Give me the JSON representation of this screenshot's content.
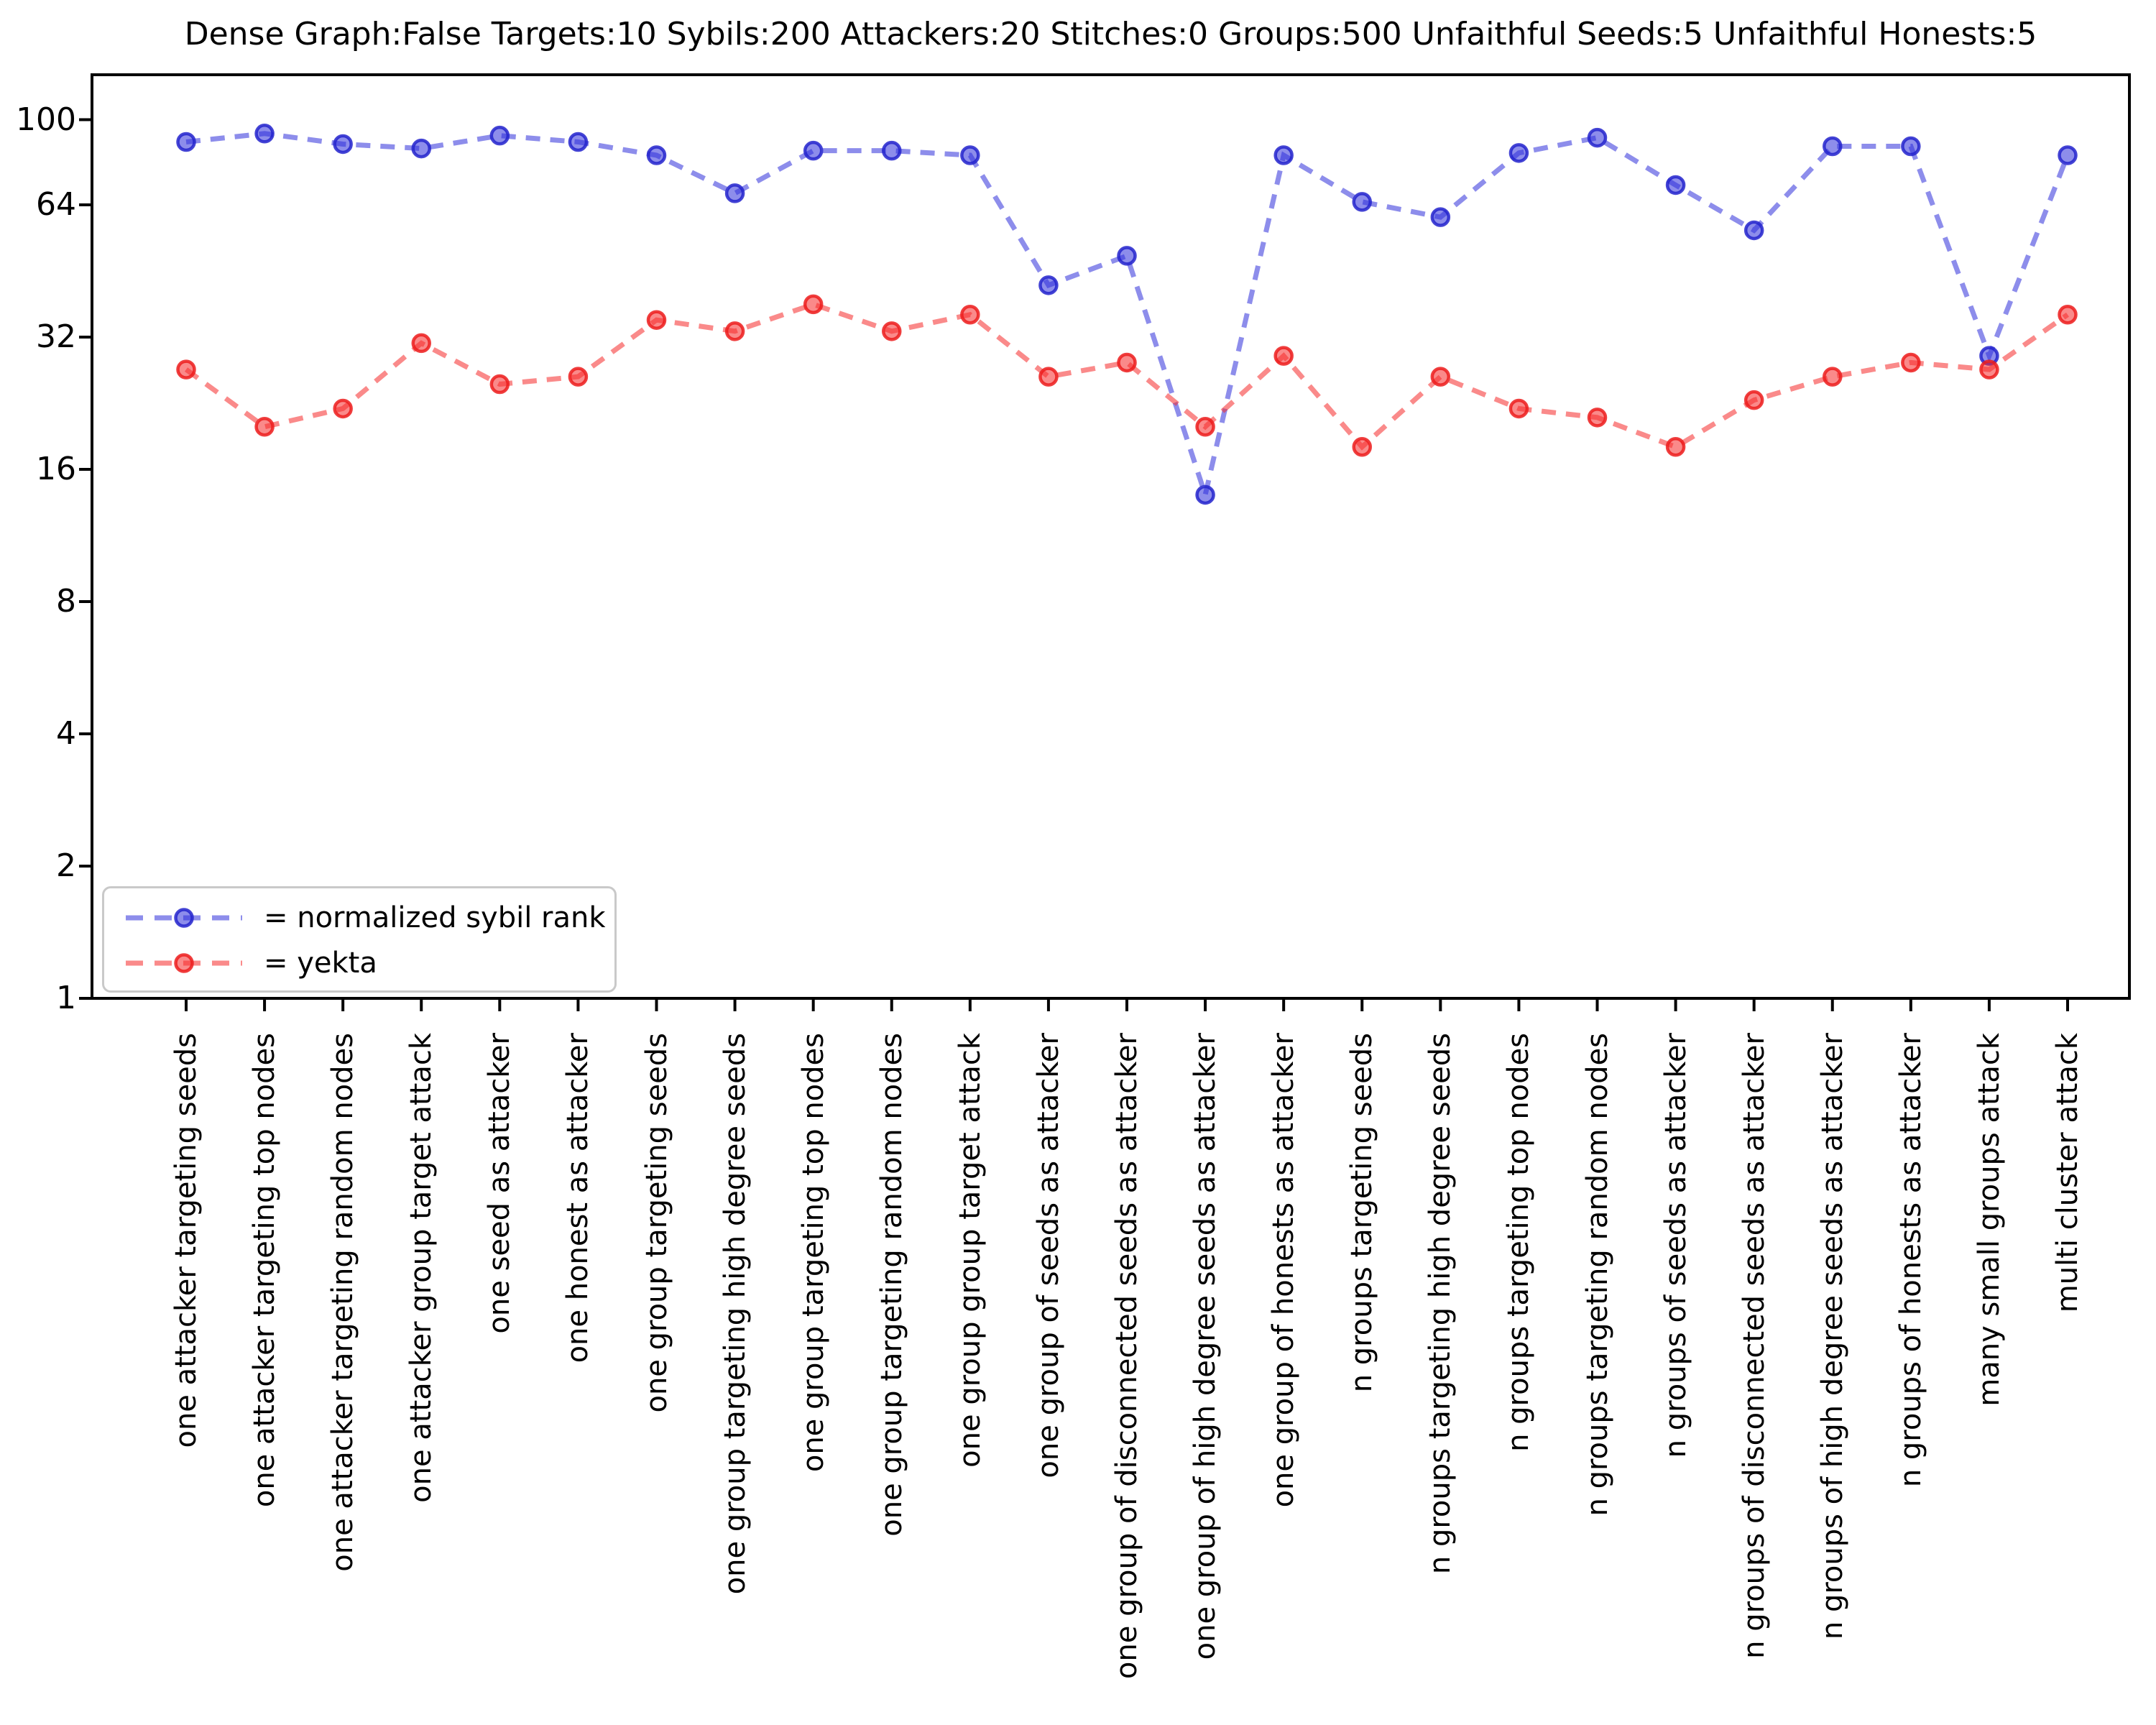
{
  "title": "Dense Graph:False Targets:10 Sybils:200 Attackers:20 Stitches:0 Groups:500 Unfaithful Seeds:5 Unfaithful Honests:5",
  "legend": {
    "items": [
      {
        "label": "= normalized sybil rank"
      },
      {
        "label": "= yekta"
      }
    ]
  },
  "chart_data": {
    "type": "line",
    "title": "Dense Graph:False Targets:10 Sybils:200 Attackers:20 Stitches:0 Groups:500 Unfaithful Seeds:5 Unfaithful Honests:5",
    "categories": [
      "one attacker targeting seeds",
      "one attacker targeting top nodes",
      "one attacker targeting random nodes",
      "one attacker group target attack",
      "one seed as attacker",
      "one honest as attacker",
      "one group targeting seeds",
      "one group targeting high degree seeds",
      "one group targeting top nodes",
      "one group targeting random nodes",
      "one group group target attack",
      "one group of seeds as attacker",
      "one group of disconnected seeds as attacker",
      "one group of high degree seeds as attacker",
      "one group of honests as attacker",
      "n groups targeting seeds",
      "n groups targeting high degree seeds",
      "n groups targeting top nodes",
      "n groups targeting random nodes",
      "n groups of seeds as attacker",
      "n groups of disconnected seeds as attacker",
      "n groups of high degree seeds as attacker",
      "n groups of honests as attacker",
      "many small groups attack",
      "multi cluster attack"
    ],
    "series": [
      {
        "name": "normalized sybil rank",
        "color": "rgba(47,47,218,0.55)",
        "marker_edge": "rgba(35,35,205,0.85)",
        "values": [
          89,
          93,
          88,
          86,
          92,
          89,
          83,
          68,
          85,
          85,
          83,
          42,
          49,
          14,
          83,
          65,
          60,
          84,
          91,
          71,
          56,
          87,
          87,
          29,
          83
        ]
      },
      {
        "name": "yekta",
        "color": "rgba(246,42,42,0.55)",
        "marker_edge": "rgba(236,28,28,0.85)",
        "values": [
          27,
          20,
          22,
          31,
          25,
          26,
          35,
          33,
          38,
          33,
          36,
          26,
          28,
          20,
          29,
          18,
          26,
          22,
          21,
          18,
          23,
          26,
          28,
          27,
          36
        ]
      }
    ],
    "x_axis": {
      "label_rotation": 90
    },
    "y_axis": {
      "scale": "log2",
      "ticks": [
        1,
        2,
        4,
        8,
        16,
        32,
        64,
        100
      ],
      "range": [
        1,
        126
      ]
    },
    "grid": false,
    "legend_position": "lower left",
    "line_style": "dashed",
    "marker": "o",
    "axis_color": "#000000",
    "background_color": "#ffffff"
  }
}
